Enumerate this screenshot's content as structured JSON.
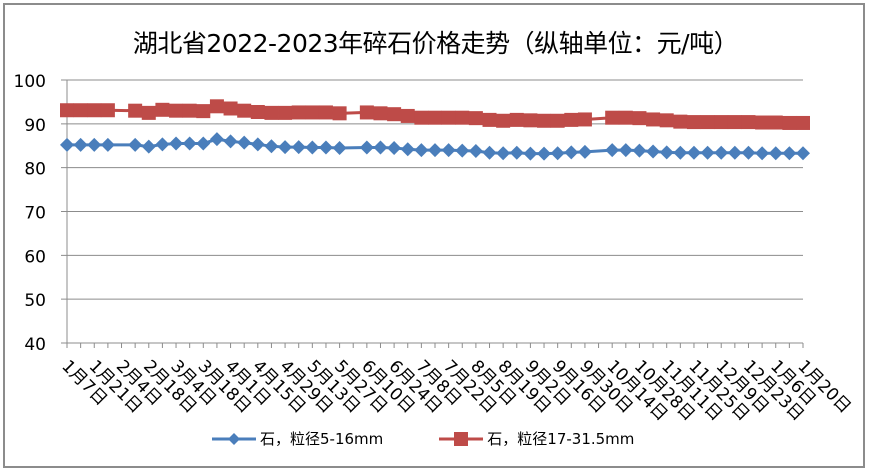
{
  "title": "湖北省2022-2023年碎石价格走势（纵轴单位：元/吨）",
  "chart_data": {
    "type": "line",
    "title": "湖北省2022-2023年碎石价格走势（纵轴单位：元/吨）",
    "xlabel": "",
    "ylabel": "元/吨",
    "ylim": [
      40,
      100
    ],
    "yticks": [
      40,
      50,
      60,
      70,
      80,
      90,
      100
    ],
    "grid": {
      "horizontal": true,
      "vertical": false
    },
    "legend_position": "bottom",
    "x_point_count": 55,
    "x_tick_labels": [
      "1月7日",
      "1月21日",
      "2月4日",
      "2月18日",
      "3月4日",
      "3月18日",
      "4月1日",
      "4月15日",
      "4月29日",
      "5月13日",
      "5月27日",
      "6月10日",
      "6月24日",
      "7月8日",
      "7月22日",
      "8月5日",
      "8月19日",
      "9月2日",
      "9月16日",
      "9月30日",
      "10月14日",
      "10月28日",
      "11月11日",
      "11月25日",
      "12月9日",
      "12月23日",
      "1月6日",
      "1月20日"
    ],
    "x_tick_label_every": 2,
    "series": [
      {
        "name": "石，粒径5-16mm",
        "color": "#4a7ebb",
        "marker": "diamond",
        "values": [
          85.2,
          85.2,
          85.2,
          85.2,
          null,
          85.2,
          84.8,
          85.3,
          85.5,
          85.5,
          85.5,
          86.5,
          86.0,
          85.7,
          85.3,
          84.9,
          84.7,
          84.7,
          84.6,
          84.6,
          84.5,
          null,
          84.6,
          84.6,
          84.5,
          84.2,
          84.0,
          84.0,
          84.0,
          83.9,
          83.8,
          83.4,
          83.3,
          83.4,
          83.2,
          83.2,
          83.3,
          83.5,
          83.6,
          null,
          84.0,
          84.0,
          83.9,
          83.7,
          83.5,
          83.4,
          83.4,
          83.4,
          83.4,
          83.4,
          83.4,
          83.3,
          83.3,
          83.3,
          83.3
        ]
      },
      {
        "name": "石，粒径17-31.5mm",
        "color": "#be4b48",
        "marker": "square",
        "values": [
          93.1,
          93.1,
          93.1,
          93.1,
          null,
          93.0,
          92.5,
          93.2,
          93.0,
          93.0,
          92.9,
          94.0,
          93.5,
          93.0,
          92.7,
          92.5,
          92.5,
          92.6,
          92.6,
          92.6,
          92.4,
          null,
          92.6,
          92.4,
          92.2,
          91.8,
          91.4,
          91.4,
          91.4,
          91.4,
          91.3,
          90.9,
          90.7,
          90.9,
          90.8,
          90.7,
          90.7,
          90.9,
          91.0,
          null,
          91.4,
          91.4,
          91.3,
          91.0,
          90.8,
          90.5,
          90.4,
          90.4,
          90.4,
          90.4,
          90.4,
          90.3,
          90.3,
          90.2,
          90.2
        ]
      }
    ]
  },
  "legend": [
    {
      "label": "石，粒径5-16mm",
      "color": "#4a7ebb",
      "marker": "diamond"
    },
    {
      "label": "石，粒径17-31.5mm",
      "color": "#be4b48",
      "marker": "square"
    }
  ]
}
